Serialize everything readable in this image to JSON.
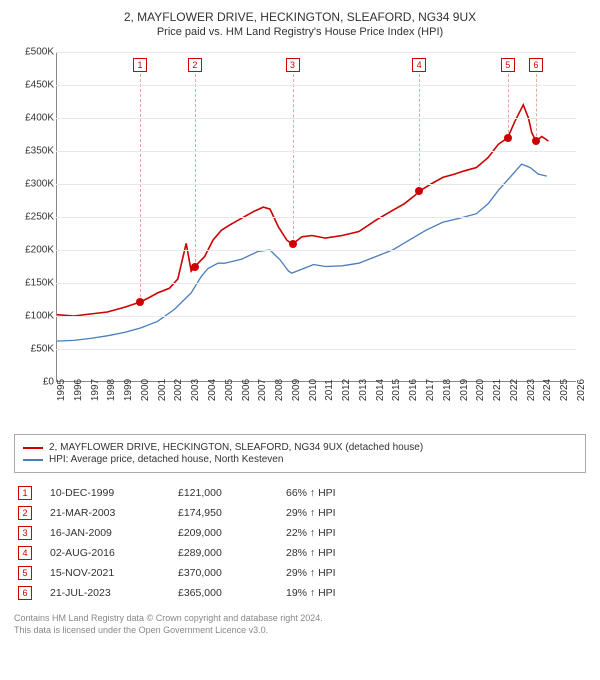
{
  "title": "2, MAYFLOWER DRIVE, HECKINGTON, SLEAFORD, NG34 9UX",
  "subtitle": "Price paid vs. HM Land Registry's House Price Index (HPI)",
  "chart": {
    "type": "line",
    "background_color": "#ffffff",
    "grid_color": "#e8e8e8",
    "axis_color": "#888888",
    "label_fontsize": 10,
    "ylim": [
      0,
      500000
    ],
    "ytick_step": 50000,
    "yaxis_prefix": "£",
    "yticks": [
      "£0",
      "£50K",
      "£100K",
      "£150K",
      "£200K",
      "£250K",
      "£300K",
      "£350K",
      "£400K",
      "£450K",
      "£500K"
    ],
    "xlim": [
      1995,
      2026
    ],
    "xticks": [
      1995,
      1996,
      1997,
      1998,
      1999,
      2000,
      2001,
      2002,
      2003,
      2004,
      2005,
      2006,
      2007,
      2008,
      2009,
      2010,
      2011,
      2012,
      2013,
      2014,
      2015,
      2016,
      2017,
      2018,
      2019,
      2020,
      2021,
      2022,
      2023,
      2024,
      2025,
      2026
    ],
    "series": [
      {
        "name": "property",
        "label": "2, MAYFLOWER DRIVE, HECKINGTON, SLEAFORD, NG34 9UX (detached house)",
        "color": "#cc0000",
        "line_width": 1.6,
        "data": [
          [
            1995,
            102000
          ],
          [
            1996,
            100000
          ],
          [
            1997,
            103000
          ],
          [
            1998,
            106000
          ],
          [
            1999,
            113000
          ],
          [
            1999.95,
            121000
          ],
          [
            2000.5,
            128000
          ],
          [
            2001,
            135000
          ],
          [
            2001.7,
            142000
          ],
          [
            2002.2,
            156000
          ],
          [
            2002.7,
            210000
          ],
          [
            2003,
            168000
          ],
          [
            2003.22,
            174950
          ],
          [
            2003.8,
            190000
          ],
          [
            2004.3,
            215000
          ],
          [
            2004.8,
            230000
          ],
          [
            2005.3,
            238000
          ],
          [
            2006,
            248000
          ],
          [
            2006.7,
            258000
          ],
          [
            2007.3,
            265000
          ],
          [
            2007.7,
            262000
          ],
          [
            2008.2,
            235000
          ],
          [
            2008.7,
            215000
          ],
          [
            2009.04,
            209000
          ],
          [
            2009.6,
            220000
          ],
          [
            2010.2,
            222000
          ],
          [
            2011,
            218000
          ],
          [
            2012,
            222000
          ],
          [
            2013,
            228000
          ],
          [
            2014,
            245000
          ],
          [
            2015,
            260000
          ],
          [
            2015.7,
            270000
          ],
          [
            2016.3,
            282000
          ],
          [
            2016.59,
            289000
          ],
          [
            2017.3,
            300000
          ],
          [
            2018,
            310000
          ],
          [
            2018.7,
            315000
          ],
          [
            2019.3,
            320000
          ],
          [
            2020,
            325000
          ],
          [
            2020.7,
            340000
          ],
          [
            2021.3,
            360000
          ],
          [
            2021.87,
            370000
          ],
          [
            2022.3,
            395000
          ],
          [
            2022.8,
            420000
          ],
          [
            2023.1,
            400000
          ],
          [
            2023.3,
            378000
          ],
          [
            2023.55,
            365000
          ],
          [
            2023.9,
            372000
          ],
          [
            2024.3,
            365000
          ]
        ]
      },
      {
        "name": "hpi",
        "label": "HPI: Average price, detached house, North Kesteven",
        "color": "#4a7ebb",
        "line_width": 1.3,
        "data": [
          [
            1995,
            62000
          ],
          [
            1996,
            63000
          ],
          [
            1997,
            66000
          ],
          [
            1998,
            70000
          ],
          [
            1999,
            75000
          ],
          [
            2000,
            82000
          ],
          [
            2001,
            92000
          ],
          [
            2002,
            110000
          ],
          [
            2003,
            135000
          ],
          [
            2003.6,
            160000
          ],
          [
            2004,
            172000
          ],
          [
            2004.6,
            180000
          ],
          [
            2005,
            180000
          ],
          [
            2006,
            186000
          ],
          [
            2007,
            198000
          ],
          [
            2007.7,
            200000
          ],
          [
            2008.3,
            185000
          ],
          [
            2008.8,
            168000
          ],
          [
            2009,
            165000
          ],
          [
            2009.7,
            172000
          ],
          [
            2010.3,
            178000
          ],
          [
            2011,
            175000
          ],
          [
            2012,
            176000
          ],
          [
            2013,
            180000
          ],
          [
            2014,
            190000
          ],
          [
            2015,
            200000
          ],
          [
            2016,
            215000
          ],
          [
            2017,
            230000
          ],
          [
            2018,
            242000
          ],
          [
            2019,
            248000
          ],
          [
            2020,
            255000
          ],
          [
            2020.7,
            270000
          ],
          [
            2021.3,
            290000
          ],
          [
            2022,
            310000
          ],
          [
            2022.7,
            330000
          ],
          [
            2023.2,
            325000
          ],
          [
            2023.7,
            315000
          ],
          [
            2024.2,
            312000
          ]
        ]
      }
    ],
    "markers": [
      {
        "n": "1",
        "year": 1999.95,
        "price": 121000
      },
      {
        "n": "2",
        "year": 2003.22,
        "price": 174950
      },
      {
        "n": "3",
        "year": 2009.04,
        "price": 209000
      },
      {
        "n": "4",
        "year": 2016.59,
        "price": 289000
      },
      {
        "n": "5",
        "year": 2021.87,
        "price": 370000
      },
      {
        "n": "6",
        "year": 2023.55,
        "price": 365000
      }
    ],
    "marker_box_color": "#cc0000",
    "marker_line_color": "#e5a5a5"
  },
  "legend": {
    "items": [
      {
        "color": "#cc0000",
        "label": "2, MAYFLOWER DRIVE, HECKINGTON, SLEAFORD, NG34 9UX (detached house)"
      },
      {
        "color": "#4a7ebb",
        "label": "HPI: Average price, detached house, North Kesteven"
      }
    ]
  },
  "transactions": [
    {
      "n": "1",
      "date": "10-DEC-1999",
      "price": "£121,000",
      "pct": "66% ↑ HPI"
    },
    {
      "n": "2",
      "date": "21-MAR-2003",
      "price": "£174,950",
      "pct": "29% ↑ HPI"
    },
    {
      "n": "3",
      "date": "16-JAN-2009",
      "price": "£209,000",
      "pct": "22% ↑ HPI"
    },
    {
      "n": "4",
      "date": "02-AUG-2016",
      "price": "£289,000",
      "pct": "28% ↑ HPI"
    },
    {
      "n": "5",
      "date": "15-NOV-2021",
      "price": "£370,000",
      "pct": "29% ↑ HPI"
    },
    {
      "n": "6",
      "date": "21-JUL-2023",
      "price": "£365,000",
      "pct": "19% ↑ HPI"
    }
  ],
  "footer_line1": "Contains HM Land Registry data © Crown copyright and database right 2024.",
  "footer_line2": "This data is licensed under the Open Government Licence v3.0."
}
